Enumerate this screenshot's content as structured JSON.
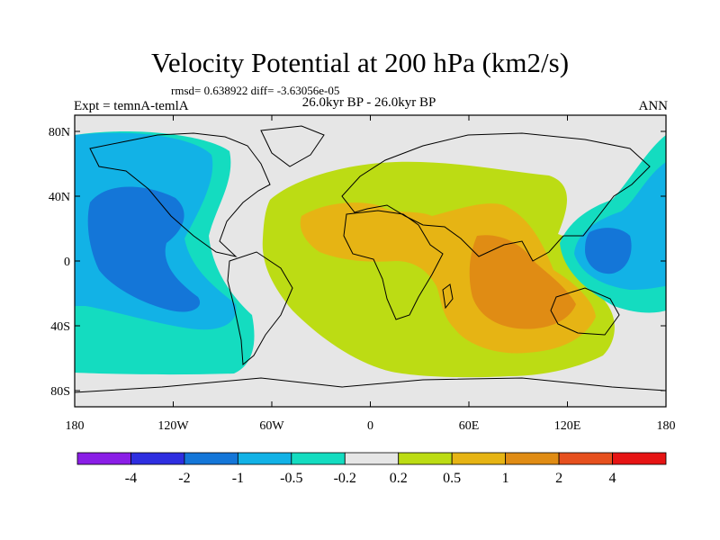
{
  "figure": {
    "title": "Velocity Potential at 200 hPa (km2/s)",
    "stats_line": "rmsd= 0.638922 diff= -3.63056e-05",
    "left_label": "Expt = temnA-temlA",
    "center_label": "26.0kyr BP - 26.0kyr BP",
    "right_label": "ANN"
  },
  "map": {
    "projection": "cylindrical equidistant",
    "lon_range": [
      -180,
      180
    ],
    "lat_range": [
      -90,
      90
    ],
    "lat_ticks": [
      {
        "value": 80,
        "label": "80N"
      },
      {
        "value": 40,
        "label": "40N"
      },
      {
        "value": 0,
        "label": "0"
      },
      {
        "value": -40,
        "label": "40S"
      },
      {
        "value": -80,
        "label": "80S"
      }
    ],
    "lon_ticks": [
      {
        "value": -180,
        "label": "180"
      },
      {
        "value": -120,
        "label": "120W"
      },
      {
        "value": -60,
        "label": "60W"
      },
      {
        "value": 0,
        "label": "0"
      },
      {
        "value": 60,
        "label": "60E"
      },
      {
        "value": 120,
        "label": "120E"
      },
      {
        "value": 180,
        "label": "180"
      }
    ],
    "background_color": "#e6e6e6"
  },
  "colorbar": {
    "colors": [
      "#8a1ee6",
      "#2e2ee0",
      "#1476d8",
      "#12b2e6",
      "#14dcc0",
      "#e6e6e6",
      "#bcdc14",
      "#e6b414",
      "#e08c14",
      "#e6501e",
      "#e61414"
    ],
    "labels": [
      "-4",
      "-2",
      "-1",
      "-0.5",
      "-0.2",
      "0.2",
      "0.5",
      "1",
      "2",
      "4"
    ]
  }
}
